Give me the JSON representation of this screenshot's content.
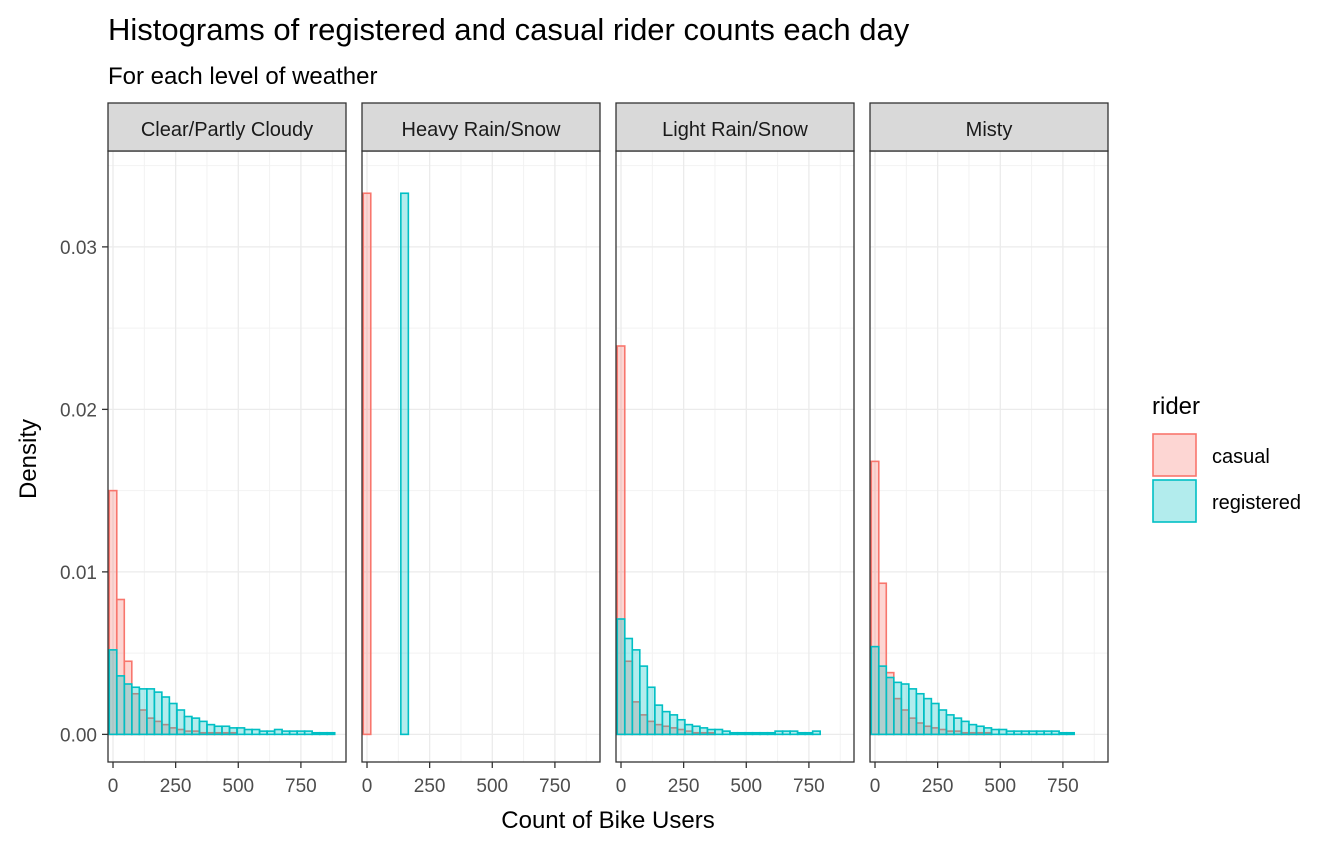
{
  "chart_data": {
    "type": "bar",
    "title": "Histograms of registered and casual rider counts each day",
    "subtitle": "For each level of weather",
    "xlabel": "Count of Bike Users",
    "ylabel": "Density",
    "xlim": [
      -20,
      930
    ],
    "ylim": [
      -0.0017,
      0.0359
    ],
    "x_ticks": [
      0,
      250,
      500,
      750
    ],
    "y_ticks": [
      0.0,
      0.01,
      0.02,
      0.03
    ],
    "y_tick_labels": [
      "0.00",
      "0.01",
      "0.02",
      "0.03"
    ],
    "grid": true,
    "bin_width": 30,
    "bin_centers": [
      0,
      30,
      60,
      90,
      120,
      150,
      180,
      210,
      240,
      270,
      300,
      330,
      360,
      390,
      420,
      450,
      480,
      510,
      540,
      570,
      600,
      630,
      660,
      690,
      720,
      750,
      780,
      810,
      840,
      870,
      900
    ],
    "legend": {
      "title": "rider",
      "position": "right",
      "entries": [
        {
          "label": "casual",
          "fill": "#F8766D",
          "stroke": "#F8766D"
        },
        {
          "label": "registered",
          "fill": "#00BFC4",
          "stroke": "#00BFC4"
        }
      ]
    },
    "facets": [
      {
        "label": "Clear/Partly Cloudy",
        "series": [
          {
            "name": "casual",
            "values": [
              0.015,
              0.0083,
              0.0045,
              0.0025,
              0.0015,
              0.001,
              0.0008,
              0.0006,
              0.0004,
              0.0003,
              0.0002,
              0.0002,
              0.0001,
              0.0001,
              0.0001,
              0.0001,
              0.0001,
              0.0,
              0.0,
              0.0,
              0.0,
              0.0,
              0.0,
              0.0,
              0.0,
              0.0,
              0.0,
              0.0,
              0.0,
              0.0,
              0.0
            ]
          },
          {
            "name": "registered",
            "values": [
              0.0052,
              0.0036,
              0.0031,
              0.0029,
              0.0028,
              0.0028,
              0.0026,
              0.0023,
              0.0019,
              0.0015,
              0.0011,
              0.001,
              0.0008,
              0.0006,
              0.0005,
              0.0005,
              0.0004,
              0.0004,
              0.0003,
              0.0003,
              0.0002,
              0.0002,
              0.0003,
              0.0002,
              0.0002,
              0.0002,
              0.0002,
              0.0001,
              0.0001,
              0.0001,
              0.0
            ]
          }
        ]
      },
      {
        "label": "Heavy Rain/Snow",
        "series": [
          {
            "name": "casual",
            "values": [
              0.0333,
              0.0,
              0.0,
              0.0,
              0.0,
              0.0,
              0.0,
              0.0,
              0.0,
              0.0,
              0.0,
              0.0,
              0.0,
              0.0,
              0.0,
              0.0,
              0.0,
              0.0,
              0.0,
              0.0,
              0.0,
              0.0,
              0.0,
              0.0,
              0.0,
              0.0,
              0.0,
              0.0,
              0.0,
              0.0,
              0.0
            ]
          },
          {
            "name": "registered",
            "values": [
              0.0,
              0.0,
              0.0,
              0.0,
              0.0,
              0.0333,
              0.0,
              0.0,
              0.0,
              0.0,
              0.0,
              0.0,
              0.0,
              0.0,
              0.0,
              0.0,
              0.0,
              0.0,
              0.0,
              0.0,
              0.0,
              0.0,
              0.0,
              0.0,
              0.0,
              0.0,
              0.0,
              0.0,
              0.0,
              0.0,
              0.0
            ]
          }
        ]
      },
      {
        "label": "Light Rain/Snow",
        "series": [
          {
            "name": "casual",
            "values": [
              0.0239,
              0.0045,
              0.002,
              0.0012,
              0.0008,
              0.0006,
              0.0005,
              0.0004,
              0.0003,
              0.0002,
              0.0001,
              0.0001,
              0.0001,
              0.0,
              0.0,
              0.0,
              0.0,
              0.0,
              0.0,
              0.0,
              0.0,
              0.0,
              0.0,
              0.0,
              0.0,
              0.0,
              0.0,
              0.0,
              0.0,
              0.0,
              0.0
            ]
          },
          {
            "name": "registered",
            "values": [
              0.0071,
              0.0059,
              0.0052,
              0.0042,
              0.0029,
              0.0018,
              0.0014,
              0.0012,
              0.0009,
              0.0006,
              0.0005,
              0.0004,
              0.0003,
              0.0003,
              0.0002,
              0.0001,
              0.0001,
              0.0001,
              0.0001,
              0.0001,
              0.0001,
              0.0002,
              0.0002,
              0.0002,
              0.0001,
              0.0001,
              0.0002,
              0.0,
              0.0,
              0.0,
              0.0
            ]
          }
        ]
      },
      {
        "label": "Misty",
        "series": [
          {
            "name": "casual",
            "values": [
              0.0168,
              0.0093,
              0.0038,
              0.0022,
              0.0015,
              0.001,
              0.0007,
              0.0005,
              0.0004,
              0.0003,
              0.0002,
              0.0002,
              0.0001,
              0.0001,
              0.0001,
              0.0001,
              0.0,
              0.0,
              0.0,
              0.0,
              0.0,
              0.0,
              0.0,
              0.0,
              0.0,
              0.0,
              0.0,
              0.0,
              0.0,
              0.0,
              0.0
            ]
          },
          {
            "name": "registered",
            "values": [
              0.0054,
              0.0042,
              0.0035,
              0.0032,
              0.0031,
              0.0028,
              0.0025,
              0.0022,
              0.0019,
              0.0015,
              0.0012,
              0.001,
              0.0008,
              0.0006,
              0.0005,
              0.0004,
              0.0003,
              0.0003,
              0.0002,
              0.0002,
              0.0002,
              0.0002,
              0.0002,
              0.0002,
              0.0002,
              0.0001,
              0.0001,
              0.0,
              0.0,
              0.0,
              0.0
            ]
          }
        ]
      }
    ]
  }
}
